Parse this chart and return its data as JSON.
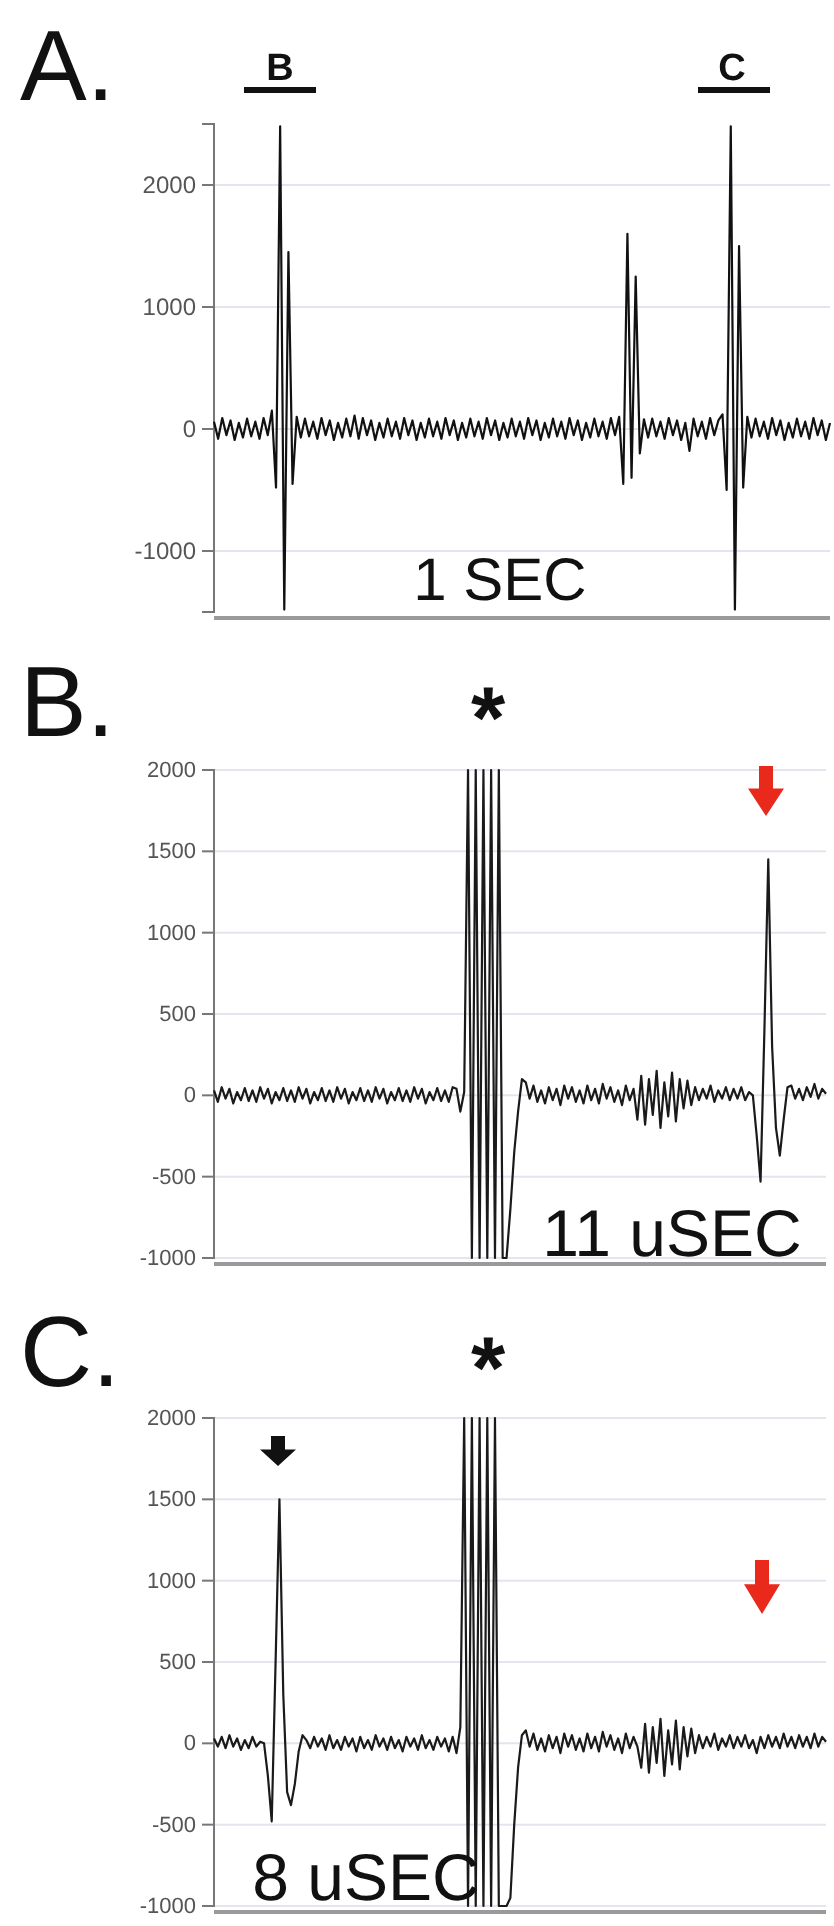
{
  "chart_data": [
    {
      "type": "line",
      "title": "A.",
      "annotations": [
        "B",
        "C",
        "1 SEC"
      ],
      "grid": "y",
      "tick_labels": "y",
      "ylim": [
        -1500,
        2500
      ],
      "yticks": [
        -1000,
        0,
        1000,
        2000
      ],
      "categories": [
        null,
        null,
        null,
        null,
        null,
        null,
        null,
        null,
        null,
        null,
        null,
        null,
        null,
        null,
        null,
        null,
        null,
        null,
        null,
        null,
        null,
        null,
        null,
        null,
        null,
        null,
        null,
        null,
        null,
        null,
        null,
        null,
        null,
        null,
        null,
        null,
        null,
        null,
        null,
        null,
        null,
        null,
        null,
        null,
        null,
        null,
        null,
        null,
        null,
        null,
        null,
        null,
        null,
        null,
        null,
        null,
        null,
        null,
        null,
        null,
        null,
        null,
        null,
        null,
        null,
        null,
        null,
        null,
        null,
        null,
        null,
        null,
        null,
        null,
        null,
        null,
        null,
        null,
        null,
        null,
        null,
        null,
        null,
        null,
        null,
        null,
        null,
        null,
        null,
        null,
        null,
        null,
        null,
        null,
        null,
        null,
        null,
        null,
        null,
        null,
        null,
        null,
        null,
        null,
        null,
        null,
        null,
        null,
        null,
        null,
        null,
        null,
        null,
        null,
        null,
        null,
        null,
        null,
        null,
        null,
        null,
        null,
        null,
        null,
        null,
        null,
        null,
        null,
        null,
        null,
        null,
        null,
        null,
        null,
        null,
        null,
        null,
        null,
        null,
        null,
        null,
        null,
        null,
        null,
        null,
        null,
        null,
        null,
        null,
        null
      ],
      "series": [
        {
          "color": "#111111",
          "values": [
            60,
            -80,
            90,
            -50,
            70,
            -90,
            50,
            -70,
            85,
            -60,
            60,
            -80,
            90,
            -50,
            150,
            -480,
            2480,
            -1480,
            1450,
            -450,
            100,
            -70,
            85,
            -60,
            60,
            -80,
            90,
            -50,
            70,
            -90,
            50,
            -70,
            85,
            -60,
            110,
            -80,
            90,
            -50,
            70,
            -90,
            50,
            -70,
            85,
            -60,
            60,
            -80,
            90,
            -50,
            70,
            -90,
            50,
            -70,
            85,
            -60,
            60,
            -80,
            90,
            -50,
            70,
            -90,
            50,
            -70,
            85,
            -60,
            60,
            -80,
            90,
            -50,
            70,
            -90,
            50,
            -70,
            85,
            -60,
            60,
            -80,
            90,
            -50,
            70,
            -90,
            50,
            -70,
            85,
            -60,
            60,
            -80,
            90,
            -50,
            70,
            -90,
            50,
            -70,
            85,
            -60,
            60,
            -80,
            90,
            -50,
            100,
            -450,
            1600,
            -400,
            1250,
            -200,
            80,
            -70,
            85,
            -60,
            60,
            -80,
            90,
            -50,
            70,
            -90,
            50,
            -180,
            85,
            -60,
            60,
            -80,
            90,
            -50,
            70,
            120,
            -500,
            2480,
            -1480,
            1500,
            -480,
            100,
            -70,
            85,
            -60,
            60,
            -80,
            90,
            -50,
            70,
            -90,
            50,
            -70,
            85,
            -60,
            60,
            -80,
            90,
            -50,
            70,
            -90,
            50
          ]
        }
      ]
    },
    {
      "type": "line",
      "title": "B.",
      "annotations": [
        "*",
        "11 uSEC"
      ],
      "grid": "y",
      "tick_labels": "y",
      "ylim": [
        -1000,
        2000
      ],
      "yticks": [
        -1000,
        -500,
        0,
        500,
        1000,
        1500,
        2000
      ],
      "categories": [
        null,
        null,
        null,
        null,
        null,
        null,
        null,
        null,
        null,
        null,
        null,
        null,
        null,
        null,
        null,
        null,
        null,
        null,
        null,
        null,
        null,
        null,
        null,
        null,
        null,
        null,
        null,
        null,
        null,
        null,
        null,
        null,
        null,
        null,
        null,
        null,
        null,
        null,
        null,
        null,
        null,
        null,
        null,
        null,
        null,
        null,
        null,
        null,
        null,
        null,
        null,
        null,
        null,
        null,
        null,
        null,
        null,
        null,
        null,
        null,
        null,
        null,
        null,
        null,
        null,
        null,
        null,
        null,
        null,
        null,
        null,
        null,
        null,
        null,
        null,
        null,
        null,
        null,
        null,
        null,
        null,
        null,
        null,
        null,
        null,
        null,
        null,
        null,
        null,
        null,
        null,
        null,
        null,
        null,
        null,
        null,
        null,
        null,
        null,
        null,
        null,
        null,
        null,
        null,
        null,
        null,
        null,
        null,
        null,
        null,
        null,
        null,
        null,
        null,
        null,
        null,
        null,
        null,
        null,
        null,
        null,
        null,
        null,
        null,
        null,
        null,
        null,
        null,
        null,
        null,
        null,
        null,
        null,
        null,
        null,
        null,
        null,
        null,
        null,
        null,
        null,
        null,
        null,
        null,
        null,
        null,
        null,
        null,
        null,
        null,
        null,
        null,
        null,
        null,
        null,
        null,
        null,
        null,
        null,
        null
      ],
      "series": [
        {
          "color": "#1a1a1a",
          "values": [
            30,
            -40,
            50,
            -20,
            40,
            -50,
            20,
            -30,
            45,
            -35,
            30,
            -40,
            50,
            -20,
            40,
            -50,
            20,
            -30,
            45,
            -35,
            30,
            -40,
            50,
            -20,
            40,
            -50,
            20,
            -30,
            45,
            -35,
            30,
            -40,
            50,
            -20,
            40,
            -50,
            20,
            -30,
            45,
            -35,
            30,
            -40,
            50,
            -20,
            40,
            -50,
            20,
            -30,
            45,
            -35,
            30,
            -40,
            50,
            -20,
            40,
            -50,
            20,
            -30,
            45,
            -35,
            30,
            -40,
            50,
            40,
            -100,
            20,
            2000,
            -1000,
            2000,
            -1000,
            2000,
            -1000,
            2000,
            -1000,
            2000,
            -1000,
            -1000,
            -700,
            -350,
            -100,
            100,
            80,
            -20,
            60,
            -40,
            30,
            -50,
            50,
            -30,
            40,
            -60,
            60,
            -20,
            50,
            -40,
            30,
            -50,
            60,
            -30,
            40,
            -50,
            70,
            -20,
            50,
            -40,
            30,
            -60,
            60,
            -30,
            40,
            -150,
            120,
            -180,
            100,
            -120,
            150,
            -200,
            80,
            -130,
            140,
            -160,
            100,
            -80,
            90,
            -60,
            50,
            -30,
            40,
            -20,
            60,
            -40,
            30,
            -20,
            50,
            -30,
            40,
            -20,
            50,
            -30,
            20,
            0,
            -250,
            -530,
            400,
            1450,
            300,
            -200,
            -370,
            -150,
            50,
            60,
            -20,
            40,
            -30,
            50,
            -10,
            70,
            -20,
            40,
            10
          ]
        }
      ]
    },
    {
      "type": "line",
      "title": "C.",
      "annotations": [
        "*",
        "8 uSEC"
      ],
      "grid": "y",
      "tick_labels": "y",
      "ylim": [
        -1000,
        2000
      ],
      "yticks": [
        -1000,
        -500,
        0,
        500,
        1000,
        1500,
        2000
      ],
      "categories": [
        null,
        null,
        null,
        null,
        null,
        null,
        null,
        null,
        null,
        null,
        null,
        null,
        null,
        null,
        null,
        null,
        null,
        null,
        null,
        null,
        null,
        null,
        null,
        null,
        null,
        null,
        null,
        null,
        null,
        null,
        null,
        null,
        null,
        null,
        null,
        null,
        null,
        null,
        null,
        null,
        null,
        null,
        null,
        null,
        null,
        null,
        null,
        null,
        null,
        null,
        null,
        null,
        null,
        null,
        null,
        null,
        null,
        null,
        null,
        null,
        null,
        null,
        null,
        null,
        null,
        null,
        null,
        null,
        null,
        null,
        null,
        null,
        null,
        null,
        null,
        null,
        null,
        null,
        null,
        null,
        null,
        null,
        null,
        null,
        null,
        null,
        null,
        null,
        null,
        null,
        null,
        null,
        null,
        null,
        null,
        null,
        null,
        null,
        null,
        null,
        null,
        null,
        null,
        null,
        null,
        null,
        null,
        null,
        null,
        null,
        null,
        null,
        null,
        null,
        null,
        null,
        null,
        null,
        null,
        null,
        null,
        null,
        null,
        null,
        null,
        null,
        null,
        null,
        null,
        null,
        null,
        null,
        null,
        null,
        null,
        null,
        null,
        null,
        null,
        null,
        null,
        null,
        null,
        null,
        null,
        null,
        null,
        null,
        null,
        null,
        null,
        null,
        null,
        null,
        null,
        null,
        null,
        null,
        null,
        null
      ],
      "series": [
        {
          "color": "#1a1a1a",
          "values": [
            30,
            -20,
            40,
            -30,
            50,
            -20,
            30,
            -40,
            20,
            -30,
            40,
            -20,
            10,
            0,
            -200,
            -480,
            500,
            1500,
            300,
            -300,
            -380,
            -250,
            -50,
            50,
            20,
            -30,
            40,
            -20,
            30,
            -40,
            50,
            -30,
            20,
            -40,
            40,
            -20,
            30,
            -50,
            40,
            -30,
            20,
            -40,
            50,
            -20,
            30,
            -40,
            40,
            -30,
            20,
            -50,
            40,
            -20,
            30,
            -40,
            50,
            -30,
            20,
            -40,
            40,
            -20,
            30,
            -50,
            40,
            -60,
            100,
            2000,
            -1000,
            2000,
            -1000,
            2000,
            -1000,
            2000,
            -1000,
            2000,
            -1000,
            -1000,
            -1000,
            -950,
            -500,
            -150,
            50,
            80,
            -20,
            60,
            -40,
            30,
            -50,
            50,
            -30,
            40,
            -60,
            60,
            -20,
            50,
            -40,
            30,
            -50,
            60,
            -30,
            40,
            -50,
            70,
            -20,
            50,
            -40,
            30,
            -60,
            60,
            -30,
            40,
            -20,
            -150,
            120,
            -180,
            100,
            -120,
            150,
            -200,
            80,
            -130,
            140,
            -160,
            100,
            -80,
            90,
            -60,
            50,
            -30,
            40,
            -20,
            60,
            -40,
            30,
            -20,
            50,
            -30,
            40,
            -20,
            50,
            -30,
            20,
            -60,
            40,
            -30,
            50,
            -20,
            40,
            -30,
            60,
            -20,
            40,
            -30,
            50,
            -20,
            40,
            -30,
            60,
            -20,
            40,
            10
          ]
        }
      ]
    }
  ]
}
